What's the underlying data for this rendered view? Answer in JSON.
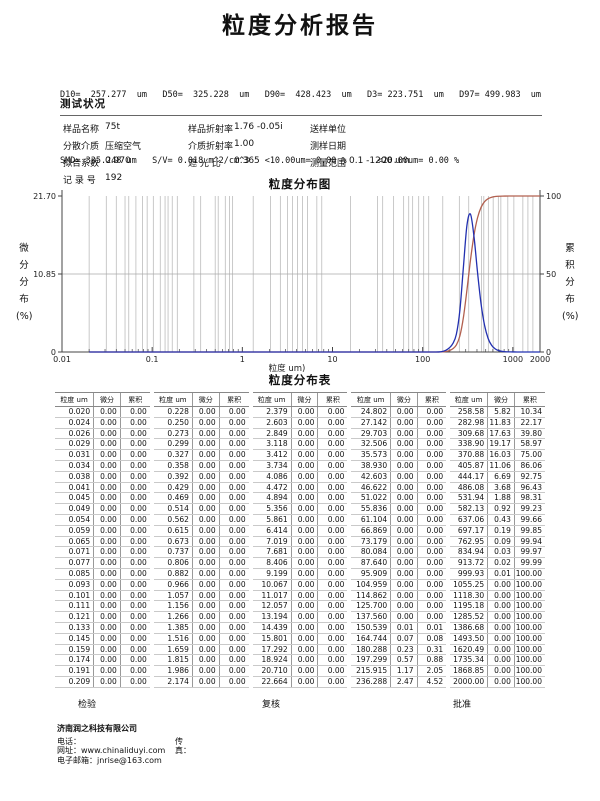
{
  "page_title": "粒度分析报告",
  "summary": {
    "line1": "D10=  257.277  um   D50=  325.228  um   D90=  428.423  um   D3= 223.751  um   D97= 499.983  um",
    "line2": "SMD= 335.248 um   S/V= 0.018 m^2/cm^3   <10.00um= 0.00 %      <20.00um= 0.00 %"
  },
  "conditions": {
    "heading": "测试状况",
    "rows": [
      {
        "c1l": "样品名称",
        "c1v": "75t",
        "c2l": "样品折射率",
        "c2v": "1.76 -0.05i",
        "c3l": "送样单位",
        "c3v": ""
      },
      {
        "c1l": "分散介质",
        "c1v": "压缩空气",
        "c2l": "介质折射率",
        "c2v": "1.00",
        "c3l": "测样日期",
        "c3v": ""
      },
      {
        "c1l": "拟合系数",
        "c1v": "0.970",
        "c2l": "遮 光 比",
        "c2v": "0.365",
        "c3l": "测量范围",
        "c3v": "0.1 -1200 um"
      },
      {
        "c1l": "记 录 号",
        "c1v": "192",
        "c2l": "",
        "c2v": "",
        "c3l": "",
        "c3v": ""
      }
    ]
  },
  "labels": {
    "y_left_vertical": "微\n分\n分\n布\n(%)",
    "y_right_vertical": "累\n积\n分\n布\n(%)"
  },
  "chart_data": {
    "type": "line",
    "title": "粒度分布图",
    "x_axis": {
      "label": "粒度 um)",
      "scale": "log",
      "min": 0.01,
      "max": 2000,
      "ticks": [
        0.01,
        0.1,
        1,
        10,
        100,
        1000,
        2000
      ],
      "tick_labels": [
        "0.01",
        "0.1",
        "1",
        "10",
        "100",
        "1000",
        "2000"
      ]
    },
    "y_left": {
      "label": "微分分布(%)",
      "min": 0,
      "max": 21.7,
      "ticks": [
        0,
        10.85,
        21.7
      ],
      "tick_labels": [
        "0",
        "10.85",
        "21.70"
      ]
    },
    "y_right": {
      "label": "累积分布(%)",
      "min": 0,
      "max": 100,
      "ticks": [
        0,
        50,
        100
      ],
      "tick_labels": [
        "0",
        "50",
        "100"
      ]
    },
    "grid_x": [
      0.02,
      0.031,
      0.04,
      0.05,
      0.055,
      0.066,
      0.078,
      0.088,
      0.103,
      0.123,
      0.139,
      0.15,
      0.167,
      0.19,
      0.29,
      0.345,
      0.5,
      0.54,
      0.647,
      0.72,
      0.78,
      1.32,
      2.05,
      2.64,
      3.16,
      3.6,
      4.08,
      4.64,
      5.27,
      6.7,
      7.6,
      15.8,
      31.6,
      36,
      47.6,
      61.5,
      70,
      77.4,
      90.3,
      102.6,
      116.6,
      167,
      255,
      324,
      450,
      476,
      535,
      605,
      690,
      736,
      879,
      1026,
      1291,
      1469,
      1668
    ],
    "series": [
      {
        "name": "cumulative",
        "axis": "right",
        "color": "#b2604f",
        "points": [
          [
            0.02,
            0
          ],
          [
            0.05,
            0
          ],
          [
            0.1,
            0
          ],
          [
            0.2,
            0
          ],
          [
            0.5,
            0
          ],
          [
            1,
            0
          ],
          [
            2,
            0
          ],
          [
            5,
            0
          ],
          [
            10,
            0
          ],
          [
            20,
            0
          ],
          [
            50,
            0
          ],
          [
            80,
            0
          ],
          [
            100,
            0
          ],
          [
            120,
            0
          ],
          [
            137.56,
            0
          ],
          [
            150.54,
            0.01
          ],
          [
            164.74,
            0.08
          ],
          [
            180.29,
            0.31
          ],
          [
            197.3,
            0.88
          ],
          [
            215.92,
            2.05
          ],
          [
            236.29,
            4.52
          ],
          [
            258.58,
            10.34
          ],
          [
            282.98,
            22.17
          ],
          [
            309.68,
            39.8
          ],
          [
            338.9,
            58.97
          ],
          [
            370.88,
            75.0
          ],
          [
            405.87,
            86.06
          ],
          [
            444.17,
            92.75
          ],
          [
            486.08,
            96.43
          ],
          [
            531.94,
            98.31
          ],
          [
            582.13,
            99.23
          ],
          [
            637.06,
            99.66
          ],
          [
            697.17,
            99.85
          ],
          [
            762.95,
            99.94
          ],
          [
            834.94,
            99.97
          ],
          [
            913.72,
            99.99
          ],
          [
            999.93,
            100
          ],
          [
            1118.3,
            100
          ],
          [
            1300,
            100
          ],
          [
            1600,
            100
          ],
          [
            2000,
            100
          ]
        ]
      },
      {
        "name": "differential",
        "axis": "left",
        "color": "#2230b0",
        "points": [
          [
            0.02,
            0
          ],
          [
            0.05,
            0
          ],
          [
            0.1,
            0
          ],
          [
            0.2,
            0
          ],
          [
            0.5,
            0
          ],
          [
            1,
            0
          ],
          [
            2,
            0
          ],
          [
            5,
            0
          ],
          [
            10,
            0
          ],
          [
            20,
            0
          ],
          [
            50,
            0
          ],
          [
            80,
            0
          ],
          [
            100,
            0
          ],
          [
            120,
            0
          ],
          [
            137.56,
            0
          ],
          [
            150.54,
            0.01
          ],
          [
            164.74,
            0.07
          ],
          [
            180.29,
            0.23
          ],
          [
            197.3,
            0.57
          ],
          [
            215.92,
            1.17
          ],
          [
            236.29,
            2.47
          ],
          [
            258.58,
            5.82
          ],
          [
            282.98,
            11.83
          ],
          [
            309.68,
            17.63
          ],
          [
            338.9,
            19.17
          ],
          [
            370.88,
            16.03
          ],
          [
            405.87,
            11.06
          ],
          [
            444.17,
            6.69
          ],
          [
            486.08,
            3.68
          ],
          [
            531.94,
            1.88
          ],
          [
            582.13,
            0.92
          ],
          [
            637.06,
            0.43
          ],
          [
            697.17,
            0.19
          ],
          [
            762.95,
            0.09
          ],
          [
            834.94,
            0.03
          ],
          [
            913.72,
            0.02
          ],
          [
            999.93,
            0.01
          ],
          [
            1118.3,
            0
          ],
          [
            1300,
            0
          ],
          [
            1600,
            0
          ],
          [
            2000,
            0
          ]
        ]
      }
    ]
  },
  "table": {
    "title": "粒度分布表",
    "headers": [
      "粒度 um",
      "微分",
      "累积"
    ],
    "groups": [
      [
        [
          "0.020",
          "0.00",
          "0.00"
        ],
        [
          "0.024",
          "0.00",
          "0.00"
        ],
        [
          "0.026",
          "0.00",
          "0.00"
        ],
        [
          "0.029",
          "0.00",
          "0.00"
        ],
        [
          "0.031",
          "0.00",
          "0.00"
        ],
        [
          "0.034",
          "0.00",
          "0.00"
        ],
        [
          "0.038",
          "0.00",
          "0.00"
        ],
        [
          "0.041",
          "0.00",
          "0.00"
        ],
        [
          "0.045",
          "0.00",
          "0.00"
        ],
        [
          "0.049",
          "0.00",
          "0.00"
        ],
        [
          "0.054",
          "0.00",
          "0.00"
        ],
        [
          "0.059",
          "0.00",
          "0.00"
        ],
        [
          "0.065",
          "0.00",
          "0.00"
        ],
        [
          "0.071",
          "0.00",
          "0.00"
        ],
        [
          "0.077",
          "0.00",
          "0.00"
        ],
        [
          "0.085",
          "0.00",
          "0.00"
        ],
        [
          "0.093",
          "0.00",
          "0.00"
        ],
        [
          "0.101",
          "0.00",
          "0.00"
        ],
        [
          "0.111",
          "0.00",
          "0.00"
        ],
        [
          "0.121",
          "0.00",
          "0.00"
        ],
        [
          "0.133",
          "0.00",
          "0.00"
        ],
        [
          "0.145",
          "0.00",
          "0.00"
        ],
        [
          "0.159",
          "0.00",
          "0.00"
        ],
        [
          "0.174",
          "0.00",
          "0.00"
        ],
        [
          "0.191",
          "0.00",
          "0.00"
        ],
        [
          "0.209",
          "0.00",
          "0.00"
        ]
      ],
      [
        [
          "0.228",
          "0.00",
          "0.00"
        ],
        [
          "0.250",
          "0.00",
          "0.00"
        ],
        [
          "0.273",
          "0.00",
          "0.00"
        ],
        [
          "0.299",
          "0.00",
          "0.00"
        ],
        [
          "0.327",
          "0.00",
          "0.00"
        ],
        [
          "0.358",
          "0.00",
          "0.00"
        ],
        [
          "0.392",
          "0.00",
          "0.00"
        ],
        [
          "0.429",
          "0.00",
          "0.00"
        ],
        [
          "0.469",
          "0.00",
          "0.00"
        ],
        [
          "0.514",
          "0.00",
          "0.00"
        ],
        [
          "0.562",
          "0.00",
          "0.00"
        ],
        [
          "0.615",
          "0.00",
          "0.00"
        ],
        [
          "0.673",
          "0.00",
          "0.00"
        ],
        [
          "0.737",
          "0.00",
          "0.00"
        ],
        [
          "0.806",
          "0.00",
          "0.00"
        ],
        [
          "0.882",
          "0.00",
          "0.00"
        ],
        [
          "0.966",
          "0.00",
          "0.00"
        ],
        [
          "1.057",
          "0.00",
          "0.00"
        ],
        [
          "1.156",
          "0.00",
          "0.00"
        ],
        [
          "1.266",
          "0.00",
          "0.00"
        ],
        [
          "1.385",
          "0.00",
          "0.00"
        ],
        [
          "1.516",
          "0.00",
          "0.00"
        ],
        [
          "1.659",
          "0.00",
          "0.00"
        ],
        [
          "1.815",
          "0.00",
          "0.00"
        ],
        [
          "1.986",
          "0.00",
          "0.00"
        ],
        [
          "2.174",
          "0.00",
          "0.00"
        ]
      ],
      [
        [
          "2.379",
          "0.00",
          "0.00"
        ],
        [
          "2.603",
          "0.00",
          "0.00"
        ],
        [
          "2.849",
          "0.00",
          "0.00"
        ],
        [
          "3.118",
          "0.00",
          "0.00"
        ],
        [
          "3.412",
          "0.00",
          "0.00"
        ],
        [
          "3.734",
          "0.00",
          "0.00"
        ],
        [
          "4.086",
          "0.00",
          "0.00"
        ],
        [
          "4.472",
          "0.00",
          "0.00"
        ],
        [
          "4.894",
          "0.00",
          "0.00"
        ],
        [
          "5.356",
          "0.00",
          "0.00"
        ],
        [
          "5.861",
          "0.00",
          "0.00"
        ],
        [
          "6.414",
          "0.00",
          "0.00"
        ],
        [
          "7.019",
          "0.00",
          "0.00"
        ],
        [
          "7.681",
          "0.00",
          "0.00"
        ],
        [
          "8.406",
          "0.00",
          "0.00"
        ],
        [
          "9.199",
          "0.00",
          "0.00"
        ],
        [
          "10.067",
          "0.00",
          "0.00"
        ],
        [
          "11.017",
          "0.00",
          "0.00"
        ],
        [
          "12.057",
          "0.00",
          "0.00"
        ],
        [
          "13.194",
          "0.00",
          "0.00"
        ],
        [
          "14.439",
          "0.00",
          "0.00"
        ],
        [
          "15.801",
          "0.00",
          "0.00"
        ],
        [
          "17.292",
          "0.00",
          "0.00"
        ],
        [
          "18.924",
          "0.00",
          "0.00"
        ],
        [
          "20.710",
          "0.00",
          "0.00"
        ],
        [
          "22.664",
          "0.00",
          "0.00"
        ]
      ],
      [
        [
          "24.802",
          "0.00",
          "0.00"
        ],
        [
          "27.142",
          "0.00",
          "0.00"
        ],
        [
          "29.703",
          "0.00",
          "0.00"
        ],
        [
          "32.506",
          "0.00",
          "0.00"
        ],
        [
          "35.573",
          "0.00",
          "0.00"
        ],
        [
          "38.930",
          "0.00",
          "0.00"
        ],
        [
          "42.603",
          "0.00",
          "0.00"
        ],
        [
          "46.622",
          "0.00",
          "0.00"
        ],
        [
          "51.022",
          "0.00",
          "0.00"
        ],
        [
          "55.836",
          "0.00",
          "0.00"
        ],
        [
          "61.104",
          "0.00",
          "0.00"
        ],
        [
          "66.869",
          "0.00",
          "0.00"
        ],
        [
          "73.179",
          "0.00",
          "0.00"
        ],
        [
          "80.084",
          "0.00",
          "0.00"
        ],
        [
          "87.640",
          "0.00",
          "0.00"
        ],
        [
          "95.909",
          "0.00",
          "0.00"
        ],
        [
          "104.959",
          "0.00",
          "0.00"
        ],
        [
          "114.862",
          "0.00",
          "0.00"
        ],
        [
          "125.700",
          "0.00",
          "0.00"
        ],
        [
          "137.560",
          "0.00",
          "0.00"
        ],
        [
          "150.539",
          "0.01",
          "0.01"
        ],
        [
          "164.744",
          "0.07",
          "0.08"
        ],
        [
          "180.288",
          "0.23",
          "0.31"
        ],
        [
          "197.299",
          "0.57",
          "0.88"
        ],
        [
          "215.915",
          "1.17",
          "2.05"
        ],
        [
          "236.288",
          "2.47",
          "4.52"
        ]
      ],
      [
        [
          "258.58",
          "5.82",
          "10.34"
        ],
        [
          "282.98",
          "11.83",
          "22.17"
        ],
        [
          "309.68",
          "17.63",
          "39.80"
        ],
        [
          "338.90",
          "19.17",
          "58.97"
        ],
        [
          "370.88",
          "16.03",
          "75.00"
        ],
        [
          "405.87",
          "11.06",
          "86.06"
        ],
        [
          "444.17",
          "6.69",
          "92.75"
        ],
        [
          "486.08",
          "3.68",
          "96.43"
        ],
        [
          "531.94",
          "1.88",
          "98.31"
        ],
        [
          "582.13",
          "0.92",
          "99.23"
        ],
        [
          "637.06",
          "0.43",
          "99.66"
        ],
        [
          "697.17",
          "0.19",
          "99.85"
        ],
        [
          "762.95",
          "0.09",
          "99.94"
        ],
        [
          "834.94",
          "0.03",
          "99.97"
        ],
        [
          "913.72",
          "0.02",
          "99.99"
        ],
        [
          "999.93",
          "0.01",
          "100.00"
        ],
        [
          "1055.25",
          "0.00",
          "100.00"
        ],
        [
          "1118.30",
          "0.00",
          "100.00"
        ],
        [
          "1195.18",
          "0.00",
          "100.00"
        ],
        [
          "1285.52",
          "0.00",
          "100.00"
        ],
        [
          "1386.68",
          "0.00",
          "100.00"
        ],
        [
          "1493.50",
          "0.00",
          "100.00"
        ],
        [
          "1620.49",
          "0.00",
          "100.00"
        ],
        [
          "1735.34",
          "0.00",
          "100.00"
        ],
        [
          "1868.85",
          "0.00",
          "100.00"
        ],
        [
          "2000.00",
          "0.00",
          "100.00"
        ]
      ]
    ]
  },
  "signoff": [
    "检验",
    "复核",
    "批准"
  ],
  "footer": {
    "company": "济南润之科技有限公司",
    "phone_label": "电话：",
    "fax_label": "传真：",
    "website_line": "网址：www.chinaliduyi.com",
    "email_line": "电子邮箱：jnrise@163.com"
  }
}
